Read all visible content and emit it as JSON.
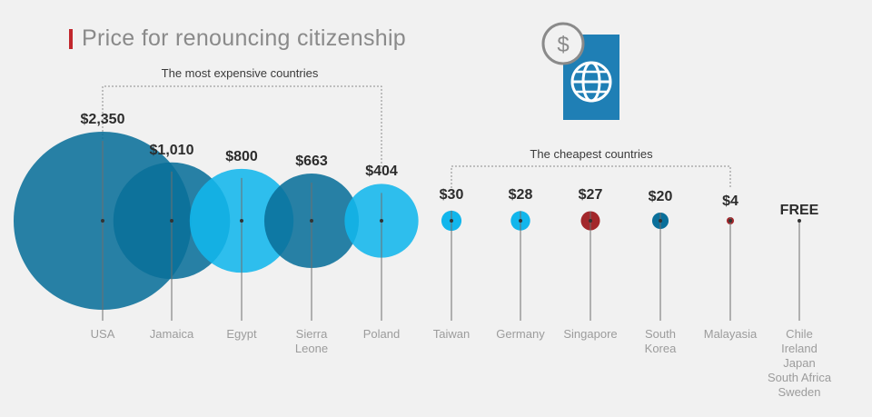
{
  "title": "Price for renouncing citizenship",
  "icon": "passport-icon",
  "colors": {
    "title_accent": "#c1272d",
    "dark_blue": "#0a6f9a",
    "light_blue": "#12b6ec",
    "red": "#a3272b",
    "line": "#6e6e6e",
    "label": "#9c9c9c"
  },
  "groups": {
    "expensive": "The most expensive countries",
    "cheapest": "The cheapest countries"
  },
  "chart_data": {
    "type": "bubble",
    "title": "Price for renouncing citizenship",
    "unit": "USD",
    "points": [
      {
        "category": [
          "USA"
        ],
        "value": 2350,
        "label": "$2,350",
        "color": "dark_blue"
      },
      {
        "category": [
          "Jamaica"
        ],
        "value": 1010,
        "label": "$1,010",
        "color": "dark_blue"
      },
      {
        "category": [
          "Egypt"
        ],
        "value": 800,
        "label": "$800",
        "color": "light_blue"
      },
      {
        "category": [
          "Sierra",
          "Leone"
        ],
        "value": 663,
        "label": "$663",
        "color": "dark_blue"
      },
      {
        "category": [
          "Poland"
        ],
        "value": 404,
        "label": "$404",
        "color": "light_blue"
      },
      {
        "category": [
          "Taiwan"
        ],
        "value": 30,
        "label": "$30",
        "color": "light_blue"
      },
      {
        "category": [
          "Germany"
        ],
        "value": 28,
        "label": "$28",
        "color": "light_blue"
      },
      {
        "category": [
          "Singapore"
        ],
        "value": 27,
        "label": "$27",
        "color": "red"
      },
      {
        "category": [
          "South",
          "Korea"
        ],
        "value": 20,
        "label": "$20",
        "color": "dark_blue"
      },
      {
        "category": [
          "Malayasia"
        ],
        "value": 4,
        "label": "$4",
        "color": "red"
      },
      {
        "category": [
          "Chile",
          "Ireland",
          "Japan",
          "South Africa",
          "Sweden"
        ],
        "value": 0,
        "label": "FREE",
        "color": "none"
      }
    ]
  }
}
